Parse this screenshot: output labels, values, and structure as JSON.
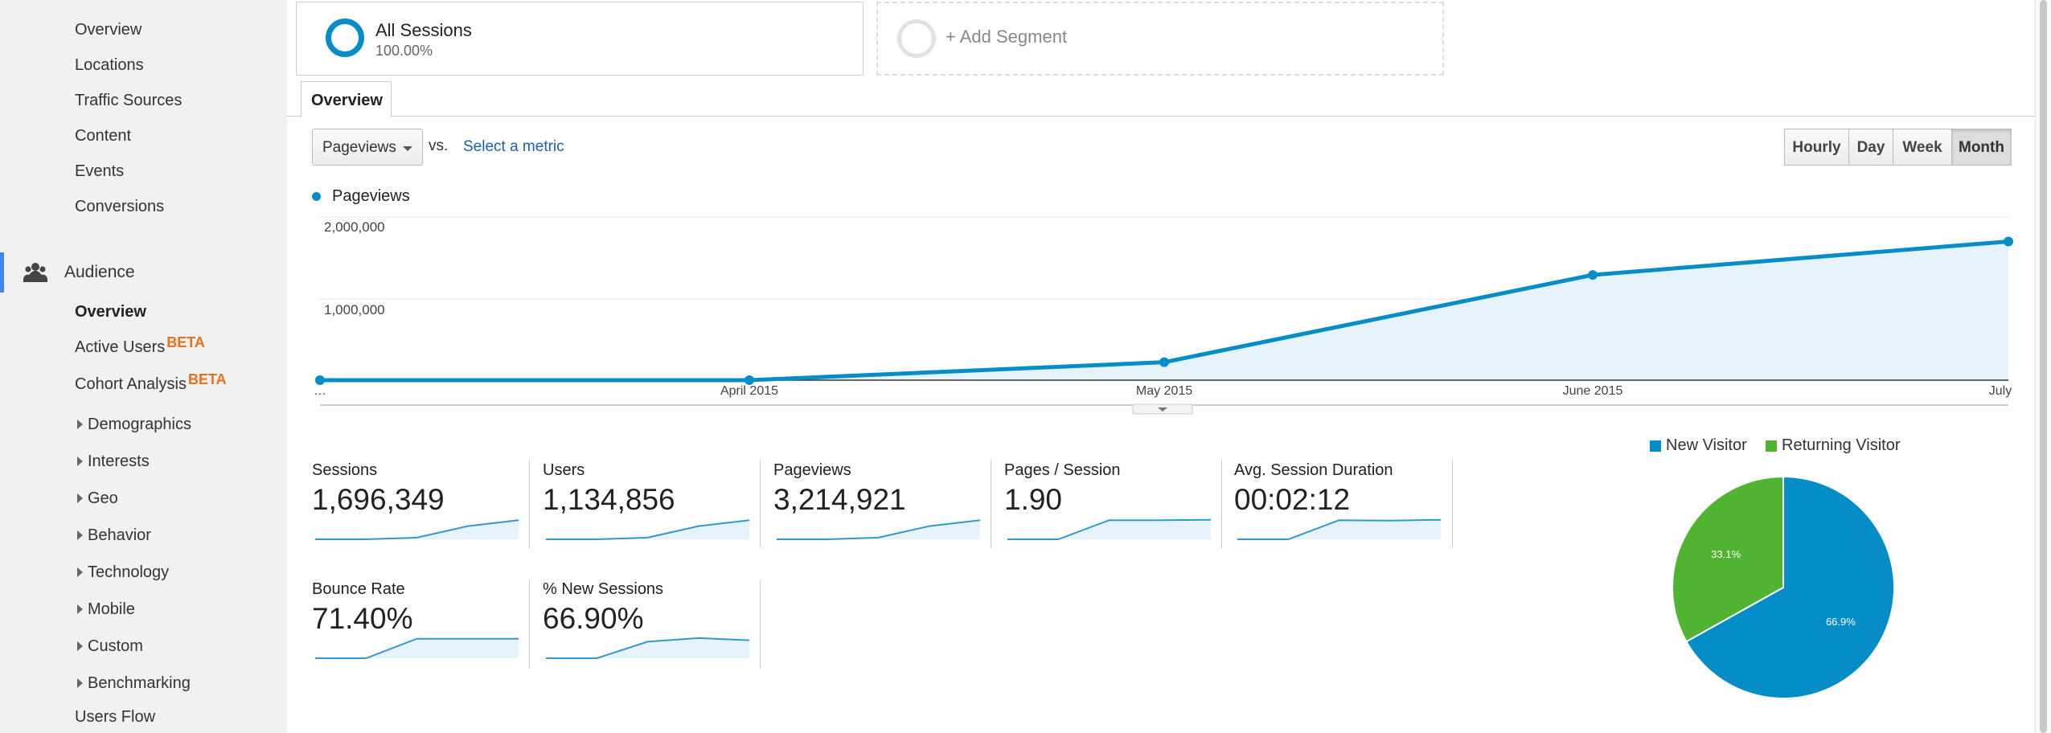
{
  "sidebar": {
    "top_items": [
      {
        "label": "Overview"
      },
      {
        "label": "Locations"
      },
      {
        "label": "Traffic Sources"
      },
      {
        "label": "Content"
      },
      {
        "label": "Events"
      },
      {
        "label": "Conversions"
      }
    ],
    "audience_label": "Audience",
    "audience_items": {
      "overview": "Overview",
      "active_users": "Active Users",
      "cohort_analysis": "Cohort Analysis",
      "beta": "BETA"
    },
    "sections": [
      {
        "label": "Demographics"
      },
      {
        "label": "Interests"
      },
      {
        "label": "Geo"
      },
      {
        "label": "Behavior"
      },
      {
        "label": "Technology"
      },
      {
        "label": "Mobile"
      },
      {
        "label": "Custom"
      },
      {
        "label": "Benchmarking"
      }
    ],
    "users_flow": "Users Flow"
  },
  "segments": {
    "all_sessions": {
      "title": "All Sessions",
      "percent": "100.00%"
    },
    "add_segment": "+ Add Segment"
  },
  "tabs": {
    "overview": "Overview"
  },
  "controls": {
    "metric": "Pageviews",
    "vs": "vs.",
    "select_metric": "Select a metric",
    "granularity": [
      {
        "label": "Hourly",
        "active": false
      },
      {
        "label": "Day",
        "active": false
      },
      {
        "label": "Week",
        "active": false
      },
      {
        "label": "Month",
        "active": true
      }
    ]
  },
  "chart_data": {
    "type": "area",
    "series": [
      {
        "name": "Pageviews",
        "values": [
          0,
          0,
          220000,
          1290000,
          1700000
        ]
      }
    ],
    "x": [
      "…",
      "April 2015",
      "May 2015",
      "June 2015",
      "July"
    ],
    "yticks": [
      "2,000,000",
      "1,000,000"
    ],
    "ylim": [
      0,
      2000000
    ],
    "grid": true,
    "color": "#058dc7",
    "fill": "#e6f3fa"
  },
  "scorecards": [
    {
      "label": "Sessions",
      "value": "1,696,349",
      "spark": [
        0,
        0,
        0.08,
        0.62,
        0.9
      ]
    },
    {
      "label": "Users",
      "value": "1,134,856",
      "spark": [
        0,
        0,
        0.08,
        0.62,
        0.9
      ]
    },
    {
      "label": "Pageviews",
      "value": "3,214,921",
      "spark": [
        0,
        0,
        0.08,
        0.62,
        0.9
      ]
    },
    {
      "label": "Pages / Session",
      "value": "1.90",
      "spark": [
        0,
        0,
        0.9,
        0.9,
        0.92
      ]
    },
    {
      "label": "Avg. Session Duration",
      "value": "00:02:12",
      "spark": [
        0,
        0,
        0.9,
        0.88,
        0.92
      ]
    },
    {
      "label": "Bounce Rate",
      "value": "71.40%",
      "spark": [
        0,
        0,
        0.92,
        0.92,
        0.92
      ]
    },
    {
      "label": "% New Sessions",
      "value": "66.90%",
      "spark": [
        0,
        0,
        0.78,
        0.95,
        0.85
      ]
    }
  ],
  "pie": {
    "legend": [
      {
        "label": "New Visitor",
        "color": "#058dc7"
      },
      {
        "label": "Returning Visitor",
        "color": "#50b432"
      }
    ],
    "slices": [
      {
        "label": "New Visitor",
        "value": 66.9,
        "text": "66.9%",
        "color": "#058dc7"
      },
      {
        "label": "Returning Visitor",
        "value": 33.1,
        "text": "33.1%",
        "color": "#50b432"
      }
    ]
  }
}
